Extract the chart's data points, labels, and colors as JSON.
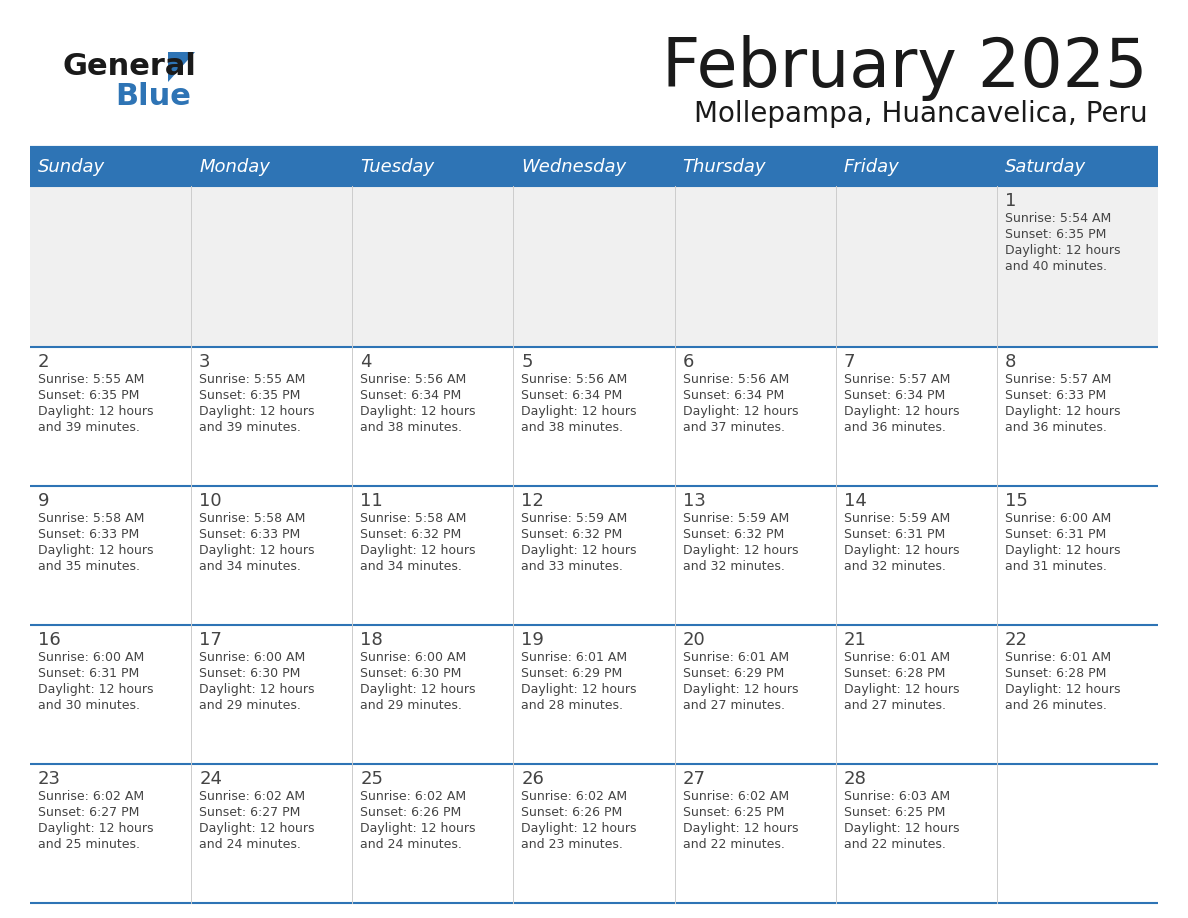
{
  "title": "February 2025",
  "subtitle": "Mollepampa, Huancavelica, Peru",
  "days_of_week": [
    "Sunday",
    "Monday",
    "Tuesday",
    "Wednesday",
    "Thursday",
    "Friday",
    "Saturday"
  ],
  "header_bg": "#2E74B5",
  "header_text_color": "#FFFFFF",
  "separator_color": "#2E74B5",
  "cell_bg_row0": "#F0F0F0",
  "cell_bg_other": "#FFFFFF",
  "text_color": "#444444",
  "title_color": "#1a1a1a",
  "logo_general_color": "#1a1a1a",
  "logo_blue_color": "#2E74B5",
  "calendar_data": [
    [
      null,
      null,
      null,
      null,
      null,
      null,
      {
        "day": 1,
        "sunrise": "5:54 AM",
        "sunset": "6:35 PM",
        "daylight": "12 hours and 40 minutes."
      }
    ],
    [
      {
        "day": 2,
        "sunrise": "5:55 AM",
        "sunset": "6:35 PM",
        "daylight": "12 hours and 39 minutes."
      },
      {
        "day": 3,
        "sunrise": "5:55 AM",
        "sunset": "6:35 PM",
        "daylight": "12 hours and 39 minutes."
      },
      {
        "day": 4,
        "sunrise": "5:56 AM",
        "sunset": "6:34 PM",
        "daylight": "12 hours and 38 minutes."
      },
      {
        "day": 5,
        "sunrise": "5:56 AM",
        "sunset": "6:34 PM",
        "daylight": "12 hours and 38 minutes."
      },
      {
        "day": 6,
        "sunrise": "5:56 AM",
        "sunset": "6:34 PM",
        "daylight": "12 hours and 37 minutes."
      },
      {
        "day": 7,
        "sunrise": "5:57 AM",
        "sunset": "6:34 PM",
        "daylight": "12 hours and 36 minutes."
      },
      {
        "day": 8,
        "sunrise": "5:57 AM",
        "sunset": "6:33 PM",
        "daylight": "12 hours and 36 minutes."
      }
    ],
    [
      {
        "day": 9,
        "sunrise": "5:58 AM",
        "sunset": "6:33 PM",
        "daylight": "12 hours and 35 minutes."
      },
      {
        "day": 10,
        "sunrise": "5:58 AM",
        "sunset": "6:33 PM",
        "daylight": "12 hours and 34 minutes."
      },
      {
        "day": 11,
        "sunrise": "5:58 AM",
        "sunset": "6:32 PM",
        "daylight": "12 hours and 34 minutes."
      },
      {
        "day": 12,
        "sunrise": "5:59 AM",
        "sunset": "6:32 PM",
        "daylight": "12 hours and 33 minutes."
      },
      {
        "day": 13,
        "sunrise": "5:59 AM",
        "sunset": "6:32 PM",
        "daylight": "12 hours and 32 minutes."
      },
      {
        "day": 14,
        "sunrise": "5:59 AM",
        "sunset": "6:31 PM",
        "daylight": "12 hours and 32 minutes."
      },
      {
        "day": 15,
        "sunrise": "6:00 AM",
        "sunset": "6:31 PM",
        "daylight": "12 hours and 31 minutes."
      }
    ],
    [
      {
        "day": 16,
        "sunrise": "6:00 AM",
        "sunset": "6:31 PM",
        "daylight": "12 hours and 30 minutes."
      },
      {
        "day": 17,
        "sunrise": "6:00 AM",
        "sunset": "6:30 PM",
        "daylight": "12 hours and 29 minutes."
      },
      {
        "day": 18,
        "sunrise": "6:00 AM",
        "sunset": "6:30 PM",
        "daylight": "12 hours and 29 minutes."
      },
      {
        "day": 19,
        "sunrise": "6:01 AM",
        "sunset": "6:29 PM",
        "daylight": "12 hours and 28 minutes."
      },
      {
        "day": 20,
        "sunrise": "6:01 AM",
        "sunset": "6:29 PM",
        "daylight": "12 hours and 27 minutes."
      },
      {
        "day": 21,
        "sunrise": "6:01 AM",
        "sunset": "6:28 PM",
        "daylight": "12 hours and 27 minutes."
      },
      {
        "day": 22,
        "sunrise": "6:01 AM",
        "sunset": "6:28 PM",
        "daylight": "12 hours and 26 minutes."
      }
    ],
    [
      {
        "day": 23,
        "sunrise": "6:02 AM",
        "sunset": "6:27 PM",
        "daylight": "12 hours and 25 minutes."
      },
      {
        "day": 24,
        "sunrise": "6:02 AM",
        "sunset": "6:27 PM",
        "daylight": "12 hours and 24 minutes."
      },
      {
        "day": 25,
        "sunrise": "6:02 AM",
        "sunset": "6:26 PM",
        "daylight": "12 hours and 24 minutes."
      },
      {
        "day": 26,
        "sunrise": "6:02 AM",
        "sunset": "6:26 PM",
        "daylight": "12 hours and 23 minutes."
      },
      {
        "day": 27,
        "sunrise": "6:02 AM",
        "sunset": "6:25 PM",
        "daylight": "12 hours and 22 minutes."
      },
      {
        "day": 28,
        "sunrise": "6:03 AM",
        "sunset": "6:25 PM",
        "daylight": "12 hours and 22 minutes."
      },
      null
    ]
  ]
}
